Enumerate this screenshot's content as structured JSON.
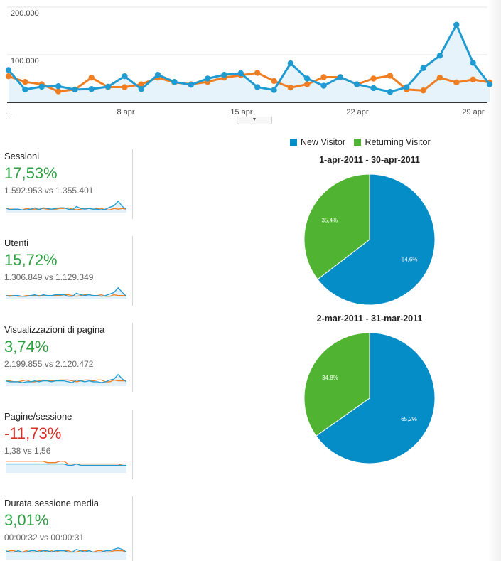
{
  "colors": {
    "new_visitor": "#058dc7",
    "returning_visitor": "#50b432",
    "main_series_1": "#1f9bd2",
    "main_series_2": "#ef7e22",
    "positive": "#2ea043",
    "negative": "#d93025"
  },
  "chart_data": [
    {
      "type": "line",
      "series": [
        {
          "values": [
            68000,
            27000,
            33000,
            34000,
            27000,
            28000,
            33000,
            55000,
            28000,
            58000,
            43000,
            37000,
            50000,
            58000,
            61000,
            32000,
            26000,
            82000,
            50000,
            35000,
            53000,
            38000,
            30000,
            22000,
            32000,
            72000,
            98000,
            163000,
            83000,
            38000
          ]
        },
        {
          "values": [
            55000,
            43000,
            38000,
            23000,
            27000,
            52000,
            32000,
            32000,
            38000,
            52000,
            42000,
            38000,
            43000,
            52000,
            57000,
            62000,
            45000,
            31000,
            38000,
            53000,
            53000,
            38000,
            50000,
            56000,
            27000,
            25000,
            52000,
            42000,
            48000,
            42000
          ]
        }
      ],
      "x_tick_labels": [
        "...",
        "8 apr",
        "15 apr",
        "22 apr",
        "29 apr"
      ],
      "y_tick_labels": [
        "200.000",
        "100.000"
      ],
      "ylim": [
        0,
        200000
      ],
      "grid": true
    },
    {
      "type": "pie",
      "title": "1-apr-2011 - 30-apr-2011",
      "slices": [
        {
          "name": "New Visitor",
          "value": 64.6,
          "label": "64,6%"
        },
        {
          "name": "Returning Visitor",
          "value": 35.4,
          "label": "35,4%"
        }
      ]
    },
    {
      "type": "pie",
      "title": "2-mar-2011 - 31-mar-2011",
      "slices": [
        {
          "name": "New Visitor",
          "value": 65.2,
          "label": "65,2%"
        },
        {
          "name": "Returning Visitor",
          "value": 34.8,
          "label": "34,8%"
        }
      ]
    }
  ],
  "legend": {
    "items": [
      "New Visitor",
      "Returning Visitor"
    ]
  },
  "metrics": [
    {
      "name": "Sessioni",
      "pct": "17,53%",
      "trend": "up",
      "comparison": "1.592.953 vs 1.355.401",
      "spark_a": [
        6,
        3,
        4,
        4,
        3,
        3,
        4,
        6,
        3,
        6,
        5,
        4,
        5,
        6,
        6,
        4,
        3,
        8,
        5,
        4,
        5,
        4,
        4,
        3,
        4,
        7,
        9,
        16,
        8,
        4
      ],
      "spark_b": [
        5,
        4,
        4,
        3,
        3,
        5,
        4,
        4,
        4,
        5,
        4,
        4,
        4,
        5,
        5,
        6,
        4,
        3,
        4,
        5,
        5,
        4,
        5,
        5,
        3,
        3,
        5,
        4,
        5,
        4
      ]
    },
    {
      "name": "Utenti",
      "pct": "15,72%",
      "trend": "up",
      "comparison": "1.306.849 vs 1.129.349",
      "spark_a": [
        4,
        3,
        4,
        4,
        3,
        3,
        4,
        5,
        3,
        5,
        4,
        4,
        5,
        5,
        5,
        3,
        3,
        7,
        5,
        4,
        5,
        4,
        4,
        3,
        4,
        6,
        8,
        14,
        8,
        3
      ],
      "spark_b": [
        4,
        4,
        4,
        3,
        3,
        4,
        4,
        4,
        4,
        4,
        4,
        4,
        4,
        4,
        5,
        5,
        4,
        3,
        4,
        5,
        5,
        4,
        4,
        5,
        3,
        3,
        5,
        4,
        4,
        4
      ]
    },
    {
      "name": "Visualizzazioni di pagina",
      "pct": "3,74%",
      "trend": "up",
      "comparison": "2.199.855 vs 2.120.472",
      "spark_a": [
        5,
        4,
        4,
        4,
        3,
        4,
        4,
        5,
        4,
        5,
        5,
        4,
        5,
        5,
        5,
        4,
        3,
        6,
        5,
        4,
        5,
        4,
        4,
        3,
        4,
        6,
        7,
        12,
        7,
        4
      ],
      "spark_b": [
        5,
        5,
        4,
        4,
        5,
        6,
        4,
        4,
        5,
        6,
        5,
        5,
        5,
        6,
        6,
        6,
        5,
        4,
        5,
        6,
        6,
        5,
        6,
        6,
        4,
        4,
        6,
        5,
        5,
        5
      ]
    },
    {
      "name": "Pagine/sessione",
      "pct": "-11,73%",
      "trend": "down",
      "comparison": "1,38 vs 1,56",
      "spark_a": [
        6,
        6,
        6,
        6,
        6,
        6,
        6,
        6,
        6,
        6,
        6,
        6,
        6,
        6,
        6,
        5,
        5,
        6,
        5,
        5,
        5,
        5,
        5,
        5,
        5,
        5,
        5,
        5,
        5,
        5
      ],
      "spark_b": [
        8,
        8,
        8,
        8,
        8,
        8,
        8,
        8,
        8,
        8,
        7,
        7,
        7,
        8,
        8,
        6,
        6,
        6,
        6,
        6,
        6,
        6,
        6,
        6,
        6,
        6,
        6,
        6,
        5,
        5
      ]
    },
    {
      "name": "Durata sessione media",
      "pct": "3,01%",
      "trend": "up",
      "comparison": "00:00:32 vs 00:00:31",
      "spark_a": [
        6,
        5,
        5,
        6,
        5,
        5,
        6,
        6,
        5,
        6,
        6,
        5,
        6,
        6,
        6,
        5,
        5,
        7,
        6,
        5,
        6,
        5,
        5,
        5,
        6,
        6,
        7,
        8,
        7,
        5
      ],
      "spark_b": [
        5,
        6,
        6,
        5,
        5,
        6,
        5,
        5,
        6,
        6,
        5,
        6,
        5,
        6,
        6,
        6,
        5,
        5,
        6,
        6,
        6,
        5,
        6,
        6,
        5,
        5,
        6,
        6,
        6,
        5
      ]
    }
  ]
}
